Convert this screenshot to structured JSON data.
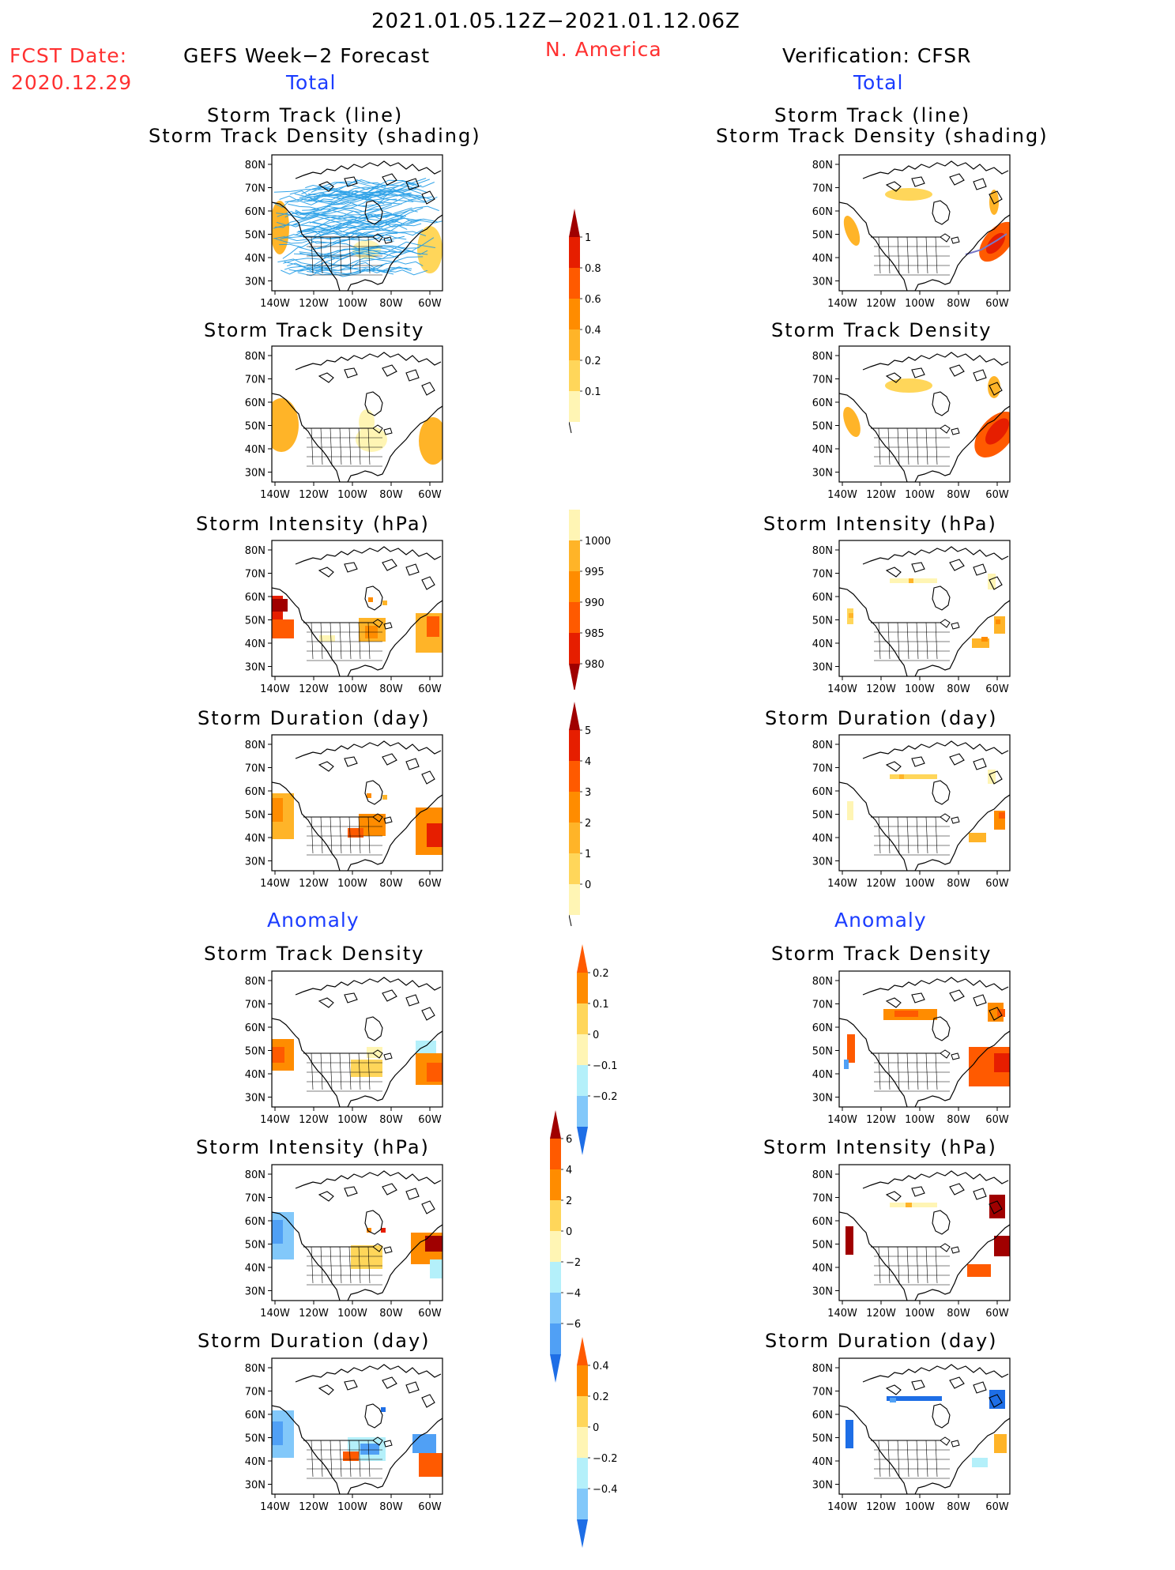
{
  "header": {
    "date_range": "2021.01.05.12Z−2021.01.12.06Z",
    "fcst_label": "FCST Date:",
    "fcst_date": "2020.12.29",
    "left_title": "GEFS Week−2 Forecast",
    "region": "N. America",
    "right_title": "Verification: CFSR",
    "total_label": "Total",
    "anomaly_label": "Anomaly"
  },
  "panel_titles": {
    "track_line_1": "Storm Track (line)",
    "track_line_2": "Storm Track Density (shading)",
    "density": "Storm Track Density",
    "intensity": "Storm Intensity (hPa)",
    "duration": "Storm Duration (day)"
  },
  "axes": {
    "lat_ticks": [
      "80N",
      "70N",
      "60N",
      "50N",
      "40N",
      "30N"
    ],
    "lon_ticks": [
      "140W",
      "120W",
      "100W",
      "80W",
      "60W"
    ]
  },
  "colorbars": {
    "density_total": [
      "1",
      "0.8",
      "0.6",
      "0.4",
      "0.2",
      "0.1"
    ],
    "intensity_total": [
      "1000",
      "995",
      "990",
      "985",
      "980"
    ],
    "duration_total": [
      "5",
      "4",
      "3",
      "2",
      "1",
      "0"
    ],
    "density_anom": [
      "0.2",
      "0.1",
      "0",
      "−0.1",
      "−0.2"
    ],
    "intensity_anom": [
      "6",
      "4",
      "2",
      "0",
      "−2",
      "−4",
      "−6"
    ],
    "duration_anom": [
      "0.4",
      "0.2",
      "0",
      "−0.2",
      "−0.4"
    ]
  },
  "colors": {
    "yellow_light": "#fff5b4",
    "yellow": "#ffd65a",
    "orange_light": "#ffb428",
    "orange": "#ff8c00",
    "red_orange": "#ff5a00",
    "red": "#e61e00",
    "dark_red": "#a00000",
    "blue_light": "#b4f0fa",
    "blue_mid": "#82c8fa",
    "blue": "#50a0f5",
    "blue_dark": "#1e6ee6",
    "track_blue": "#1e9be6"
  }
}
